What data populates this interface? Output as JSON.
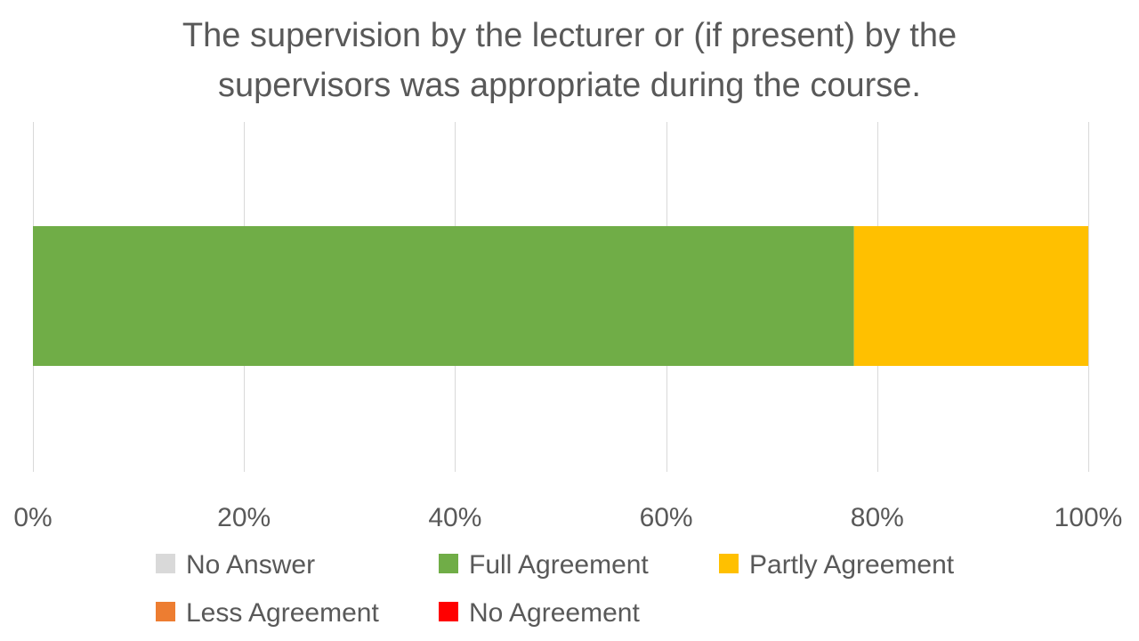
{
  "chart_data": {
    "type": "bar",
    "orientation": "horizontal",
    "stacked": "percent",
    "title": "The supervision by the lecturer or (if present) by the supervisors was appropriate during the course.",
    "title_lines": [
      "The supervision by the lecturer or (if present) by the",
      "supervisors was appropriate during the course."
    ],
    "categories": [
      ""
    ],
    "series": [
      {
        "name": "No Answer",
        "values": [
          0
        ],
        "color": "#d9d9d9"
      },
      {
        "name": "Full Agreement",
        "values": [
          77.8
        ],
        "color": "#70ad47"
      },
      {
        "name": "Partly Agreement",
        "values": [
          22.2
        ],
        "color": "#ffc000"
      },
      {
        "name": "Less Agreement",
        "values": [
          0
        ],
        "color": "#ed7d31"
      },
      {
        "name": "No Agreement",
        "values": [
          0
        ],
        "color": "#ff0000"
      }
    ],
    "xlim": [
      0,
      100
    ],
    "x_ticks": [
      0,
      20,
      40,
      60,
      80,
      100
    ],
    "x_tick_labels": [
      "0%",
      "20%",
      "40%",
      "60%",
      "80%",
      "100%"
    ],
    "grid": "vertical",
    "legend_position": "bottom",
    "xlabel": "",
    "ylabel": ""
  }
}
